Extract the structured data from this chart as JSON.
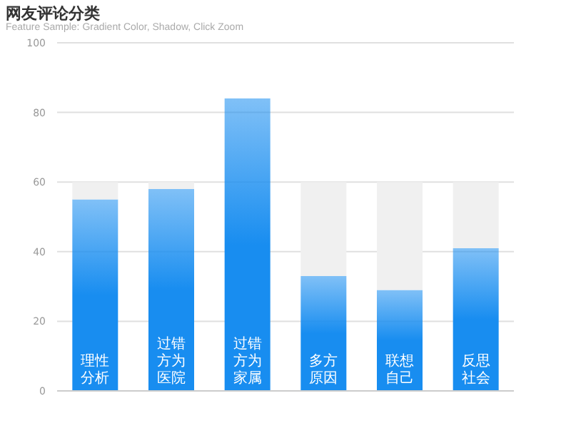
{
  "chart_data": {
    "type": "bar",
    "title": "网友评论分类",
    "subtitle": "Feature Sample: Gradient Color, Shadow, Click Zoom",
    "categories": [
      "理性分析",
      "过错方为医院",
      "过错方为家属",
      "多方原因",
      "联想自己",
      "反思社会"
    ],
    "stacked": true,
    "series": [
      {
        "color": "#188df0",
        "values": [
          55,
          58,
          84,
          33,
          29,
          41
        ]
      },
      {
        "color": "#f0f0f0",
        "values": [
          5,
          2,
          null,
          27,
          31,
          19
        ]
      }
    ],
    "ylim": [
      0,
      100
    ],
    "yticks": [
      0,
      20,
      40,
      60,
      80,
      100
    ],
    "grid": "y"
  }
}
